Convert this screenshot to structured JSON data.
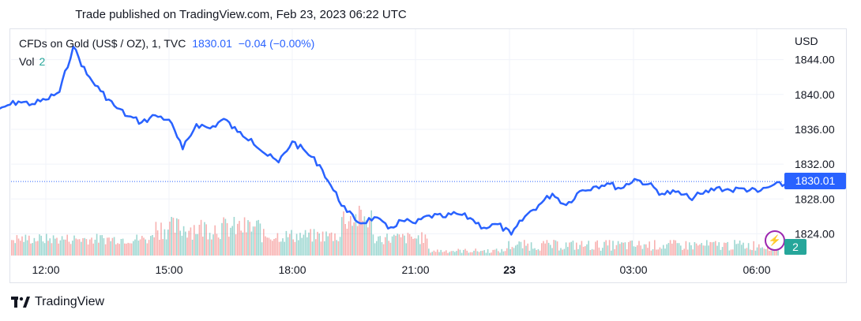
{
  "published_text": "Trade published on TradingView.com, Feb 23, 2023 06:22 UTC",
  "legend": {
    "symbol": "CFDs on Gold (US$ / OZ), 1, TVC",
    "last": "1830.01",
    "change": "−0.04 (−0.00%)",
    "vol_label": "Vol",
    "vol_value": "2"
  },
  "brand": "TradingView",
  "colors": {
    "line": "#2962ff",
    "vol_up": "#26a69a",
    "vol_down": "#ef5350",
    "grid": "#f0f3fa"
  },
  "chart_data": {
    "type": "line",
    "currency": "USD",
    "ylim": [
      1821.5,
      1847.5
    ],
    "y_ticks": [
      "1844.00",
      "1840.00",
      "1836.00",
      "1832.00",
      "1828.00",
      "1824.00"
    ],
    "x_ticks": [
      "12:00",
      "15:00",
      "18:00",
      "21:00",
      "23",
      "03:00",
      "06:00"
    ],
    "last_price": "1830.01",
    "last_volume": "2",
    "series": [
      {
        "x": [
          "10:40",
          "11:00",
          "11:20",
          "11:40",
          "12:00",
          "12:20",
          "12:40",
          "13:00",
          "13:20",
          "13:40",
          "14:00",
          "14:20",
          "14:40",
          "15:00",
          "15:20",
          "15:40",
          "16:00",
          "16:20",
          "16:40",
          "17:00",
          "17:20",
          "17:40",
          "18:00",
          "18:20",
          "18:40",
          "19:00",
          "19:20",
          "19:40",
          "20:00",
          "20:20",
          "20:40",
          "21:00",
          "21:20",
          "21:40",
          "22:00",
          "22:20",
          "22:40",
          "23:00",
          "23:20",
          "23:40",
          "00:00",
          "00:20",
          "00:40",
          "01:00",
          "01:20",
          "01:40",
          "02:00",
          "02:20",
          "02:40",
          "03:00",
          "03:20",
          "03:40",
          "04:00",
          "04:20",
          "04:40",
          "05:00",
          "05:20",
          "05:40",
          "06:00",
          "06:20"
        ],
        "values": [
          1837.3,
          1838.6,
          1839.2,
          1838.9,
          1839.4,
          1840.3,
          1845.5,
          1842.3,
          1840.4,
          1838.7,
          1837.5,
          1836.8,
          1837.6,
          1837.1,
          1833.7,
          1836.6,
          1836.1,
          1837.2,
          1835.7,
          1834.9,
          1833.2,
          1832.2,
          1834.6,
          1833.4,
          1831.9,
          1829.0,
          1826.5,
          1825.2,
          1825.9,
          1824.6,
          1825.5,
          1825.2,
          1826.1,
          1825.9,
          1826.3,
          1825.8,
          1824.7,
          1825.1,
          1823.9,
          1826.0,
          1827.3,
          1828.6,
          1827.3,
          1828.9,
          1829.4,
          1829.8,
          1829.2,
          1830.3,
          1829.7,
          1828.6,
          1828.8,
          1828.1,
          1828.6,
          1829.3,
          1829.0,
          1829.2,
          1828.8,
          1829.5,
          1829.7,
          1830.01
        ]
      }
    ]
  }
}
